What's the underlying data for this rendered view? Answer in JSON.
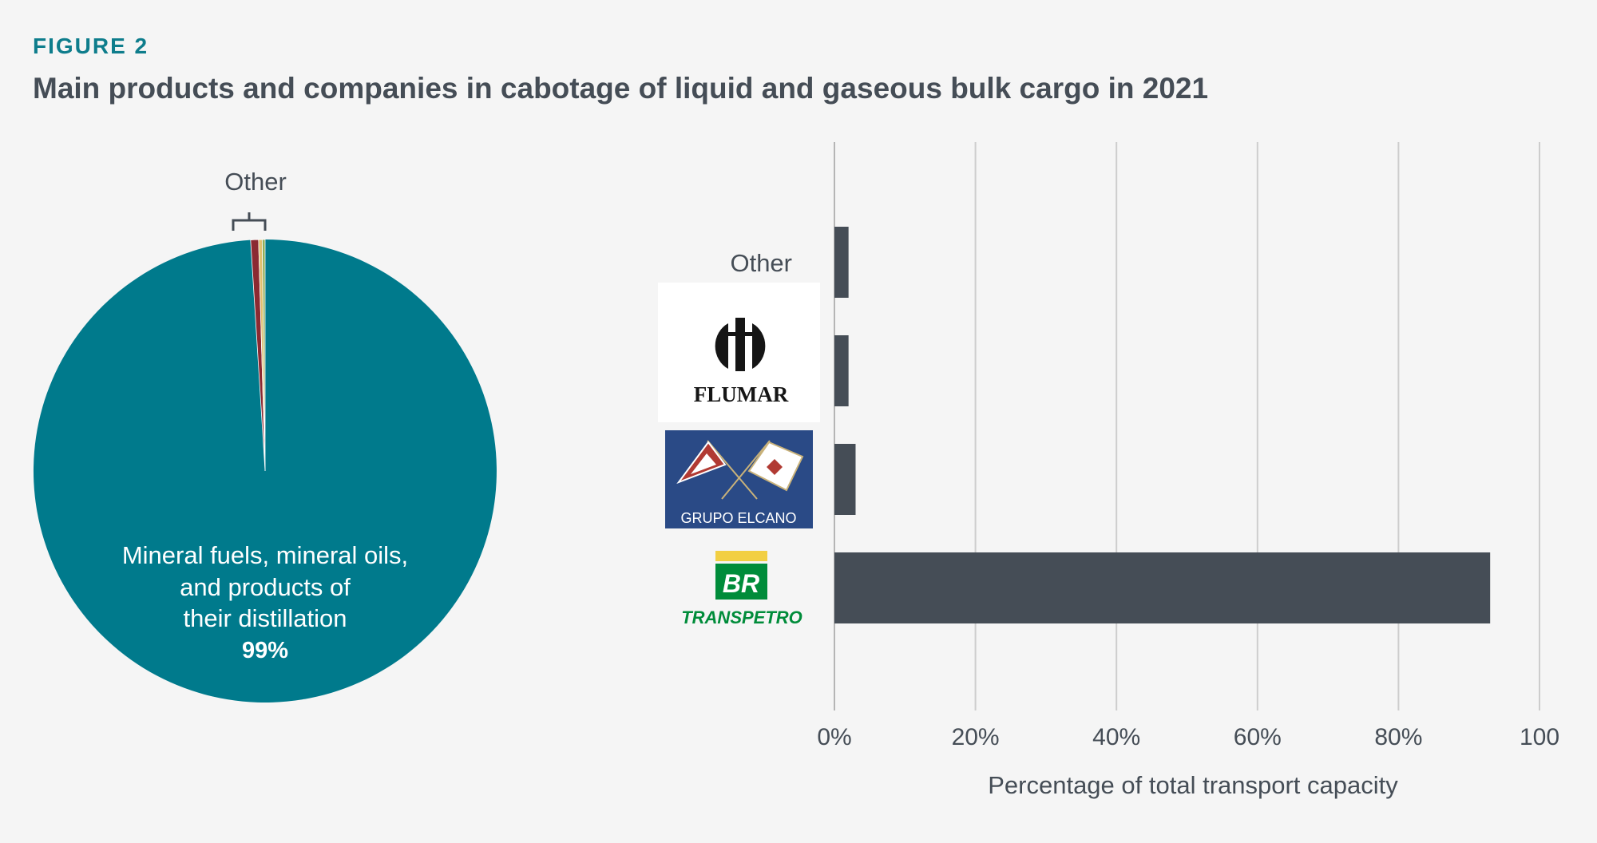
{
  "figure_label": "FIGURE 2",
  "title": "Main products and companies in cabotage of liquid and gaseous bulk cargo in 2021",
  "chart_data": [
    {
      "type": "pie",
      "slices": [
        {
          "label": "Mineral fuels, mineral oils, and products of their distillation",
          "value": 99,
          "value_label": "99%",
          "color": "#007a8c"
        },
        {
          "label": "Other",
          "value": 0.55,
          "color": "#8b2a32"
        },
        {
          "label": "Other",
          "value": 0.25,
          "color": "#e0c070"
        },
        {
          "label": "Other",
          "value": 0.2,
          "color": "#8fae5a"
        }
      ],
      "main_label_lines": [
        "Mineral fuels, mineral oils,",
        "and products of",
        "their distillation"
      ],
      "main_value_label": "99%",
      "other_label": "Other"
    },
    {
      "type": "bar",
      "orientation": "horizontal",
      "categories": [
        "Other",
        "FLUMAR",
        "GRUPO ELCANO",
        "TRANSPETRO"
      ],
      "values": [
        2,
        2,
        3,
        93
      ],
      "bar_color": "#454d56",
      "xlim": [
        0,
        100
      ],
      "xticks": [
        0,
        20,
        40,
        60,
        80,
        100
      ],
      "xtick_labels": [
        "0%",
        "20%",
        "40%",
        "60%",
        "80%",
        "100"
      ],
      "xlabel": "Percentage of total transport capacity",
      "grid": true
    }
  ],
  "logos": {
    "flumar": "FLUMAR",
    "elcano": "GRUPO ELCANO",
    "br": "BR",
    "transpetro": "TRANSPETRO"
  }
}
